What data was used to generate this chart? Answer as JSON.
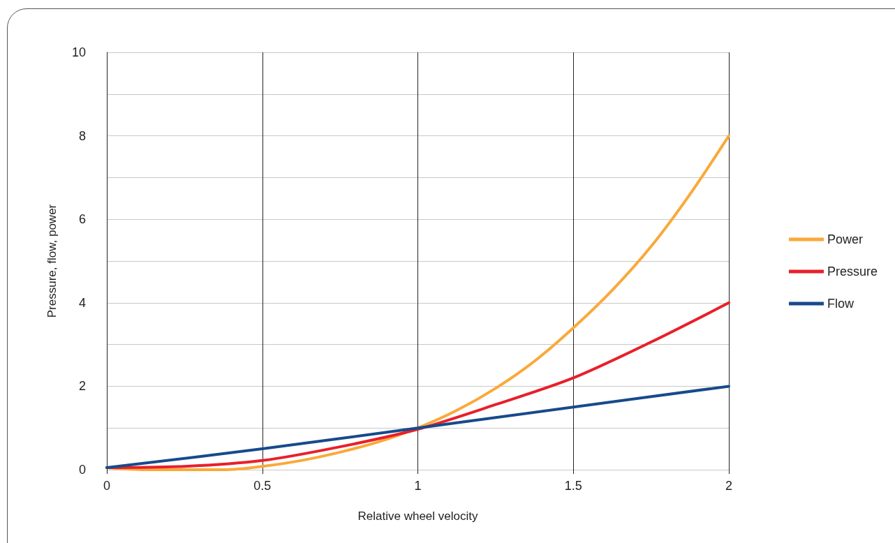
{
  "chart_data": {
    "type": "line",
    "xlabel": "Relative wheel velocity",
    "ylabel": "Pressure, flow, power",
    "xlim": [
      0,
      2
    ],
    "xticks": [
      0,
      0.5,
      1,
      1.5,
      2
    ],
    "ylim": [
      0,
      10
    ],
    "yticks": [
      0,
      {
        "value": 1,
        "label": null
      },
      2,
      {
        "value": 3,
        "label": null
      },
      4,
      {
        "value": 5,
        "label": null
      },
      6,
      {
        "value": 7,
        "label": null
      },
      8,
      {
        "value": 9,
        "label": null
      },
      10
    ],
    "grid": true,
    "legend": "right",
    "marker": "none",
    "line_style": "solid",
    "series": [
      {
        "name": "Power",
        "color": "#f9a93a",
        "x": [
          0,
          0.125,
          0.25,
          0.375,
          0.5,
          0.625,
          0.75,
          0.875,
          1,
          1.125,
          1.25,
          1.375,
          1.5,
          1.625,
          1.75,
          1.875,
          2
        ],
        "values": [
          0.05,
          0,
          0,
          0,
          0.08,
          0.22,
          0.42,
          0.67,
          1,
          1.42,
          1.95,
          2.6,
          3.4,
          4.3,
          5.35,
          6.6,
          8
        ]
      },
      {
        "name": "Pressure",
        "color": "#e8202a",
        "x": [
          0,
          0.25,
          0.5,
          0.75,
          1,
          1.25,
          1.5,
          1.75,
          2
        ],
        "values": [
          0.05,
          0.08,
          0.22,
          0.55,
          0.97,
          1.56,
          2.2,
          3.06,
          4
        ]
      },
      {
        "name": "Flow",
        "color": "#174a8b",
        "x": [
          0,
          0.5,
          1,
          1.5,
          2
        ],
        "values": [
          0.05,
          0.5,
          1,
          1.5,
          2
        ]
      }
    ]
  }
}
